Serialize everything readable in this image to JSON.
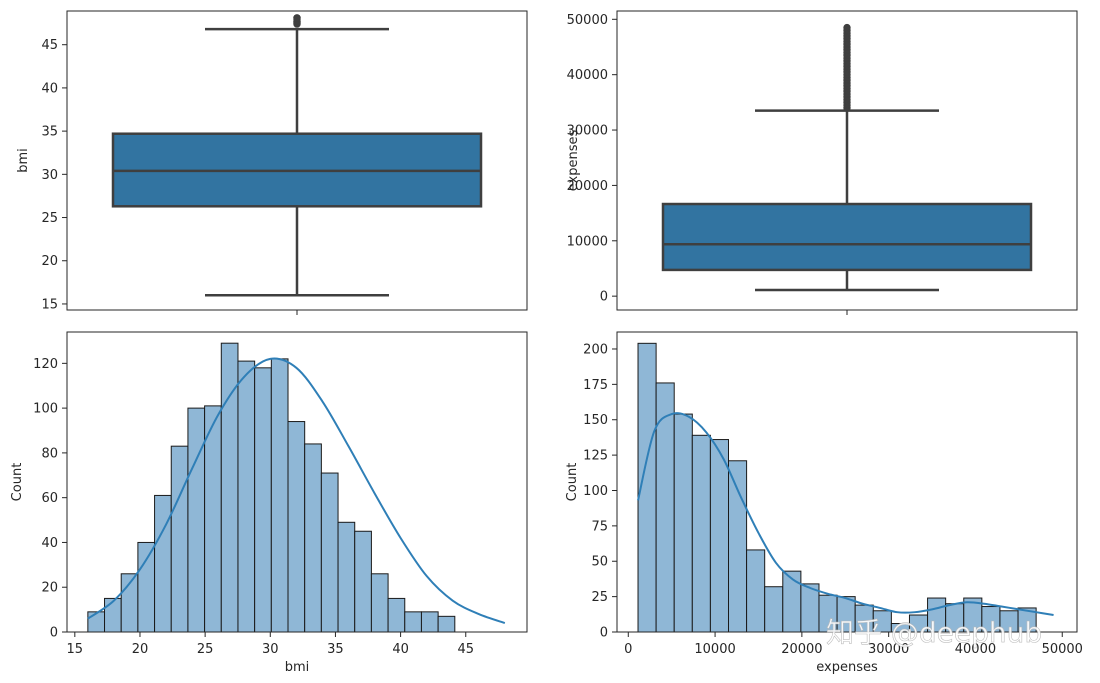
{
  "figure": {
    "watermark": "知乎 @deephub"
  },
  "colors": {
    "box_fill": "#3274a1",
    "box_line": "#3f3f3f",
    "hist_fill": "#8fb7d6",
    "hist_edge": "#1a1a1a",
    "kde_line": "#2f7fb7",
    "axes_frame": "#262626"
  },
  "chart_data": [
    {
      "type": "box",
      "ylabel": "bmi",
      "ylim": [
        14.3,
        48.9
      ],
      "yticks": [
        15,
        20,
        25,
        30,
        35,
        40,
        45
      ],
      "whisker_low": 16.0,
      "q1": 26.3,
      "median": 30.4,
      "q3": 34.7,
      "whisker_high": 46.8,
      "outliers": [
        47.4,
        47.5,
        47.6,
        47.7,
        47.9,
        48.1,
        48.1
      ]
    },
    {
      "type": "box",
      "ylabel": "expenses",
      "ylim": [
        -2500,
        51500
      ],
      "yticks": [
        0,
        10000,
        20000,
        30000,
        40000,
        50000
      ],
      "whisker_low": 1122,
      "q1": 4740,
      "median": 9382,
      "q3": 16640,
      "whisker_high": 33500,
      "outliers": [
        34000,
        34500,
        35000,
        35500,
        36000,
        36500,
        37000,
        37500,
        38000,
        38500,
        39000,
        39500,
        40000,
        40500,
        41000,
        41500,
        42000,
        42500,
        43000,
        43500,
        44000,
        44500,
        45000,
        45500,
        46000,
        46500,
        47000,
        47500,
        48000,
        48500
      ]
    },
    {
      "type": "histogram",
      "xlabel": "bmi",
      "ylabel": "Count",
      "xlim": [
        14.4,
        49.7
      ],
      "ylim": [
        0,
        134
      ],
      "xticks": [
        15,
        20,
        25,
        30,
        35,
        40,
        45
      ],
      "yticks": [
        0,
        20,
        40,
        60,
        80,
        100,
        120
      ],
      "bin_start": 16.0,
      "bin_width": 1.28,
      "counts": [
        9,
        15,
        26,
        40,
        61,
        83,
        100,
        101,
        129,
        121,
        118,
        122,
        94,
        84,
        71,
        49,
        45,
        26,
        15,
        9,
        9,
        7
      ],
      "kde": {
        "x": [
          16.0,
          18.0,
          20.0,
          22.0,
          24.0,
          26.0,
          28.0,
          30.0,
          32.0,
          34.0,
          36.0,
          38.0,
          40.0,
          42.0,
          44.0,
          46.0,
          48.0
        ],
        "y": [
          6,
          14,
          28,
          48,
          73,
          97,
          114,
          122,
          118,
          103,
          83,
          62,
          42,
          25,
          14,
          8,
          4
        ]
      }
    },
    {
      "type": "histogram",
      "xlabel": "expenses",
      "ylabel": "Count",
      "xlim": [
        -1300,
        51700
      ],
      "ylim": [
        0,
        212
      ],
      "xticks": [
        0,
        10000,
        20000,
        30000,
        40000,
        50000
      ],
      "yticks": [
        0,
        25,
        50,
        75,
        100,
        125,
        150,
        175,
        200
      ],
      "bin_start": 1122,
      "bin_width": 2085,
      "counts": [
        204,
        176,
        154,
        139,
        136,
        121,
        58,
        32,
        43,
        34,
        26,
        25,
        19,
        15,
        6,
        12,
        24,
        20,
        24,
        18,
        15,
        17
      ],
      "kde": {
        "x": [
          1122,
          3000,
          5000,
          7000,
          9000,
          11000,
          13000,
          15000,
          17000,
          19000,
          21000,
          23000,
          25000,
          27000,
          29000,
          31000,
          33000,
          35000,
          37000,
          39000,
          41000,
          43000,
          45000,
          47000,
          49000
        ],
        "y": [
          93,
          142,
          154,
          152,
          141,
          122,
          95,
          70,
          49,
          37,
          31,
          27,
          24,
          20,
          17,
          14,
          14,
          16,
          19,
          21,
          20,
          18,
          16,
          14,
          12
        ]
      }
    }
  ]
}
